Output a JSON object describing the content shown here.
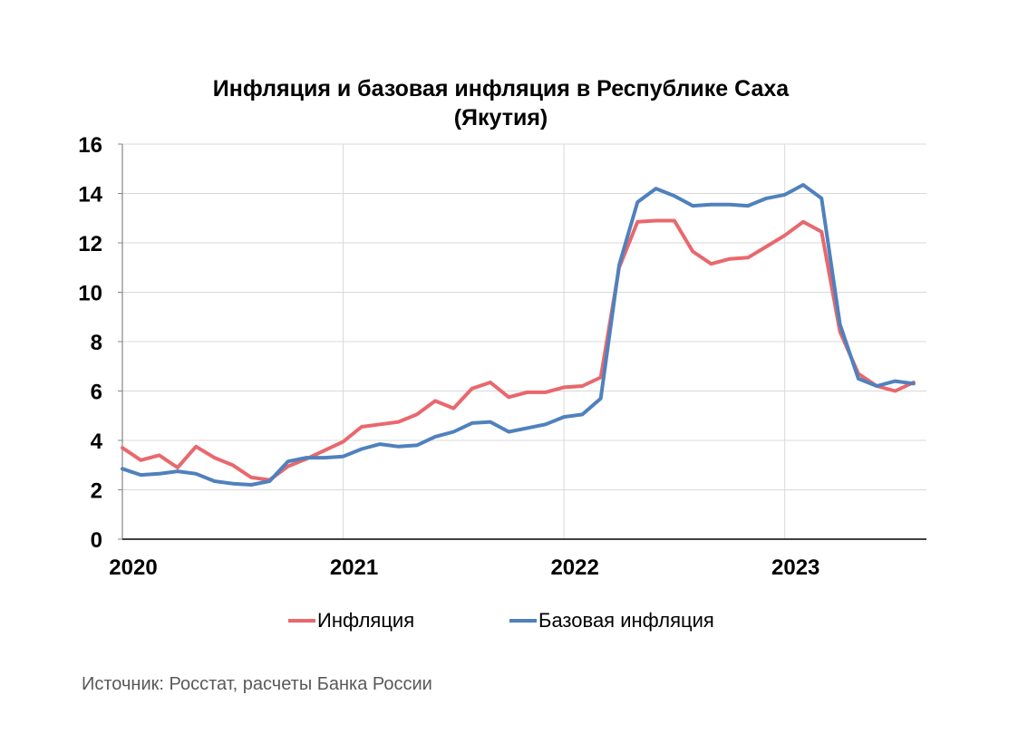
{
  "title_line1": "Инфляция и базовая инфляция в Республике Саха",
  "title_line2": "(Якутия)",
  "source": "Источник: Росстат, расчеты Банка России",
  "colors": {
    "inflation": "#E8686D",
    "core": "#4F81BD",
    "grid": "#d9d9d9"
  },
  "chart_data": {
    "type": "line",
    "title": "Инфляция и базовая инфляция в Республике Саха (Якутия)",
    "x_ticks": [
      "2020",
      "2021",
      "2022",
      "2023"
    ],
    "x": [
      "2020-01",
      "2020-02",
      "2020-03",
      "2020-04",
      "2020-05",
      "2020-06",
      "2020-07",
      "2020-08",
      "2020-09",
      "2020-10",
      "2020-11",
      "2020-12",
      "2021-01",
      "2021-02",
      "2021-03",
      "2021-04",
      "2021-05",
      "2021-06",
      "2021-07",
      "2021-08",
      "2021-09",
      "2021-10",
      "2021-11",
      "2021-12",
      "2022-01",
      "2022-02",
      "2022-03",
      "2022-04",
      "2022-05",
      "2022-06",
      "2022-07",
      "2022-08",
      "2022-09",
      "2022-10",
      "2022-11",
      "2022-12",
      "2023-01",
      "2023-02",
      "2023-03",
      "2023-04",
      "2023-05",
      "2023-06",
      "2023-07",
      "2023-08"
    ],
    "ylim": [
      0,
      16
    ],
    "y_ticks": [
      0,
      2,
      4,
      6,
      8,
      10,
      12,
      14,
      16
    ],
    "grid": true,
    "legend": "bottom",
    "series": [
      {
        "name": "Инфляция",
        "color": "#E8686D",
        "values": [
          3.7,
          3.2,
          3.4,
          2.9,
          3.75,
          3.3,
          3.0,
          2.5,
          2.4,
          2.95,
          3.25,
          3.6,
          3.95,
          4.55,
          4.65,
          4.75,
          5.05,
          5.6,
          5.3,
          6.1,
          6.35,
          5.75,
          5.95,
          5.95,
          6.15,
          6.2,
          6.55,
          11.0,
          12.85,
          12.9,
          12.9,
          11.65,
          11.15,
          11.35,
          11.4,
          11.85,
          12.3,
          12.85,
          12.45,
          8.4,
          6.7,
          6.2,
          6.0,
          6.35
        ]
      },
      {
        "name": "Базовая инфляция",
        "color": "#4F81BD",
        "values": [
          2.85,
          2.6,
          2.65,
          2.75,
          2.65,
          2.35,
          2.25,
          2.2,
          2.35,
          3.15,
          3.3,
          3.3,
          3.35,
          3.65,
          3.85,
          3.75,
          3.8,
          4.15,
          4.35,
          4.7,
          4.75,
          4.35,
          4.5,
          4.65,
          4.95,
          5.05,
          5.7,
          11.1,
          13.65,
          14.2,
          13.9,
          13.5,
          13.55,
          13.55,
          13.5,
          13.8,
          13.95,
          14.35,
          13.8,
          8.7,
          6.5,
          6.2,
          6.4,
          6.3
        ]
      }
    ]
  }
}
